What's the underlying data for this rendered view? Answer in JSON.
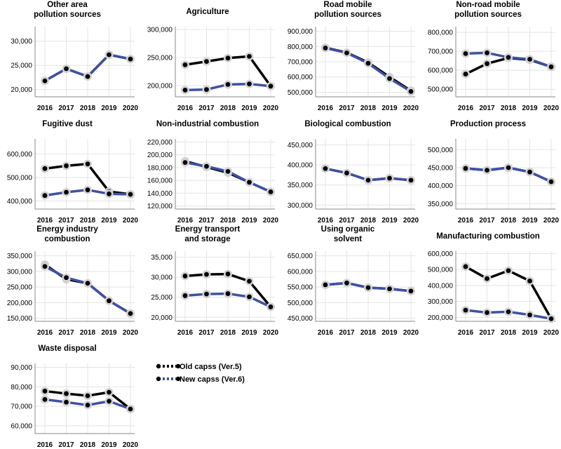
{
  "legend": {
    "entries": [
      {
        "name": "Old capss (Ver.5)",
        "color": "#000000"
      },
      {
        "name": "New capss (Ver.6)",
        "color": "#3f51a3"
      }
    ]
  },
  "chart_data": [
    {
      "type": "line",
      "title": [
        "Other area",
        "pollution  sources"
      ],
      "x": [
        "2016",
        "2017",
        "2018",
        "2019",
        "2020"
      ],
      "ylim": [
        18500,
        33000
      ],
      "yticks": [
        20000,
        25000,
        30000
      ],
      "ytick_labels": [
        "20,000",
        "25,000",
        "30,000"
      ],
      "series": [
        {
          "name": "Old capss (Ver.5)",
          "values": [
            21800,
            24300,
            22700,
            27200,
            26300
          ]
        },
        {
          "name": "New capss (Ver.6)",
          "values": [
            21800,
            24300,
            22700,
            27200,
            26300
          ]
        }
      ]
    },
    {
      "type": "line",
      "title": [
        "Agriculture"
      ],
      "x": [
        "2016",
        "2017",
        "2018",
        "2019",
        "2020"
      ],
      "ylim": [
        180000,
        305000
      ],
      "yticks": [
        200000,
        250000,
        300000
      ],
      "ytick_labels": [
        "200,000",
        "250,000",
        "300,000"
      ],
      "series": [
        {
          "name": "Old capss (Ver.5)",
          "values": [
            237000,
            243000,
            249000,
            252000,
            199000
          ]
        },
        {
          "name": "New capss (Ver.6)",
          "values": [
            192000,
            193000,
            202000,
            203000,
            199000
          ]
        }
      ]
    },
    {
      "type": "line",
      "title": [
        "Road mobile",
        "pollution  sources"
      ],
      "x": [
        "2016",
        "2017",
        "2018",
        "2019",
        "2020"
      ],
      "ylim": [
        470000,
        930000
      ],
      "yticks": [
        500000,
        600000,
        700000,
        800000,
        900000
      ],
      "ytick_labels": [
        "500,000",
        "600,000",
        "700,000",
        "800,000",
        "900,000"
      ],
      "series": [
        {
          "name": "Old capss (Ver.5)",
          "values": [
            792000,
            760000,
            695000,
            600000,
            510000
          ]
        },
        {
          "name": "New capss (Ver.6)",
          "values": [
            790000,
            758000,
            690000,
            590000,
            505000
          ]
        }
      ]
    },
    {
      "type": "line",
      "title": [
        "Non-road mobile",
        "pollution  sources"
      ],
      "x": [
        "2016",
        "2017",
        "2018",
        "2019",
        "2020"
      ],
      "ylim": [
        460000,
        830000
      ],
      "yticks": [
        500000,
        600000,
        700000,
        800000
      ],
      "ytick_labels": [
        "500,000",
        "600,000",
        "700,000",
        "800,000"
      ],
      "series": [
        {
          "name": "Old capss (Ver.5)",
          "values": [
            580000,
            635000,
            665000,
            655000,
            618000
          ]
        },
        {
          "name": "New capss (Ver.6)",
          "values": [
            688000,
            692000,
            668000,
            658000,
            618000
          ]
        }
      ]
    },
    {
      "type": "line",
      "title": [
        "Fugitive dust"
      ],
      "x": [
        "2016",
        "2017",
        "2018",
        "2019",
        "2020"
      ],
      "ylim": [
        365000,
        665000
      ],
      "yticks": [
        400000,
        500000,
        600000
      ],
      "ytick_labels": [
        "400,000",
        "500,000",
        "600,000"
      ],
      "series": [
        {
          "name": "Old capss (Ver.5)",
          "values": [
            538000,
            550000,
            558000,
            440000,
            428000
          ]
        },
        {
          "name": "New capss (Ver.6)",
          "values": [
            423000,
            437000,
            447000,
            430000,
            428000
          ]
        }
      ]
    },
    {
      "type": "line",
      "title": [
        "Non-industrial  combustion"
      ],
      "x": [
        "2016",
        "2017",
        "2018",
        "2019",
        "2020"
      ],
      "ylim": [
        115000,
        225000
      ],
      "yticks": [
        120000,
        140000,
        160000,
        180000,
        200000,
        220000
      ],
      "ytick_labels": [
        "120,000",
        "140,000",
        "160,000",
        "180,000",
        "200,000",
        "220,000"
      ],
      "series": [
        {
          "name": "Old capss (Ver.5)",
          "values": [
            190000,
            181000,
            172000,
            157000,
            142000
          ]
        },
        {
          "name": "New capss (Ver.6)",
          "values": [
            188000,
            182000,
            174000,
            157000,
            142000
          ]
        }
      ]
    },
    {
      "type": "line",
      "title": [
        "Biological  combustion"
      ],
      "x": [
        "2016",
        "2017",
        "2018",
        "2019",
        "2020"
      ],
      "ylim": [
        290000,
        465000
      ],
      "yticks": [
        300000,
        350000,
        400000,
        450000
      ],
      "ytick_labels": [
        "300,000",
        "350,000",
        "400,000",
        "450,000"
      ],
      "series": [
        {
          "name": "Old capss (Ver.5)",
          "values": [
            391000,
            380000,
            362000,
            367000,
            362000
          ]
        },
        {
          "name": "New capss (Ver.6)",
          "values": [
            391000,
            380000,
            362000,
            367000,
            362000
          ]
        }
      ]
    },
    {
      "type": "line",
      "title": [
        "Production  process"
      ],
      "x": [
        "2016",
        "2017",
        "2018",
        "2019",
        "2020"
      ],
      "ylim": [
        335000,
        530000
      ],
      "yticks": [
        350000,
        400000,
        450000,
        500000
      ],
      "ytick_labels": [
        "350,000",
        "400,000",
        "450,000",
        "500,000"
      ],
      "series": [
        {
          "name": "Old capss (Ver.5)",
          "values": [
            448000,
            443000,
            450000,
            438000,
            411000
          ]
        },
        {
          "name": "New capss (Ver.6)",
          "values": [
            448000,
            443000,
            450000,
            438000,
            411000
          ]
        }
      ]
    },
    {
      "type": "line",
      "title": [
        "Energy  industry",
        "combustion"
      ],
      "x": [
        "2016",
        "2017",
        "2018",
        "2019",
        "2020"
      ],
      "ylim": [
        140000,
        365000
      ],
      "yticks": [
        150000,
        200000,
        250000,
        300000,
        350000
      ],
      "ytick_labels": [
        "150,000",
        "200,000",
        "250,000",
        "300,000",
        "350,000"
      ],
      "series": [
        {
          "name": "Old capss (Ver.5)",
          "values": [
            322000,
            275000,
            262000,
            206000,
            165000
          ]
        },
        {
          "name": "New capss (Ver.6)",
          "values": [
            316000,
            280000,
            262000,
            206000,
            165000
          ]
        }
      ]
    },
    {
      "type": "line",
      "title": [
        "Energy  transport",
        "and storage"
      ],
      "x": [
        "2016",
        "2017",
        "2018",
        "2019",
        "2020"
      ],
      "ylim": [
        19000,
        36500
      ],
      "yticks": [
        20000,
        25000,
        30000,
        35000
      ],
      "ytick_labels": [
        "20,000",
        "25,000",
        "30,000",
        "35,000"
      ],
      "series": [
        {
          "name": "Old capss (Ver.5)",
          "values": [
            30300,
            30700,
            30800,
            29000,
            22600
          ]
        },
        {
          "name": "New capss (Ver.6)",
          "values": [
            25400,
            25800,
            25900,
            25100,
            22600
          ]
        }
      ]
    },
    {
      "type": "line",
      "title": [
        "Using organic",
        "solvent"
      ],
      "x": [
        "2016",
        "2017",
        "2018",
        "2019",
        "2020"
      ],
      "ylim": [
        440000,
        665000
      ],
      "yticks": [
        450000,
        500000,
        550000,
        600000,
        650000
      ],
      "ytick_labels": [
        "450,000",
        "500,000",
        "550,000",
        "600,000",
        "650,000"
      ],
      "series": [
        {
          "name": "Old capss (Ver.5)",
          "values": [
            557000,
            563000,
            548000,
            544000,
            537000
          ]
        },
        {
          "name": "New capss (Ver.6)",
          "values": [
            557000,
            563000,
            548000,
            544000,
            537000
          ]
        }
      ]
    },
    {
      "type": "line",
      "title": [
        "Manufacturing  combustion"
      ],
      "x": [
        "2016",
        "2017",
        "2018",
        "2019",
        "2020"
      ],
      "ylim": [
        175000,
        615000
      ],
      "yticks": [
        200000,
        300000,
        400000,
        500000,
        600000
      ],
      "ytick_labels": [
        "200,000",
        "300,000",
        "400,000",
        "500,000",
        "600,000"
      ],
      "series": [
        {
          "name": "Old capss (Ver.5)",
          "values": [
            518000,
            443000,
            493000,
            428000,
            191000
          ]
        },
        {
          "name": "New capss (Ver.6)",
          "values": [
            245000,
            230000,
            235000,
            215000,
            191000
          ]
        }
      ]
    },
    {
      "type": "line",
      "title": [
        "Waste disposal"
      ],
      "x": [
        "2016",
        "2017",
        "2018",
        "2019",
        "2020"
      ],
      "ylim": [
        56000,
        92000
      ],
      "yticks": [
        60000,
        70000,
        80000,
        90000
      ],
      "ytick_labels": [
        "60,000",
        "70,000",
        "80,000",
        "90,000"
      ],
      "series": [
        {
          "name": "Old capss (Ver.5)",
          "values": [
            77800,
            76500,
            75400,
            77200,
            68600
          ]
        },
        {
          "name": "New capss (Ver.6)",
          "values": [
            73500,
            72100,
            70600,
            72600,
            68600
          ]
        }
      ]
    }
  ]
}
